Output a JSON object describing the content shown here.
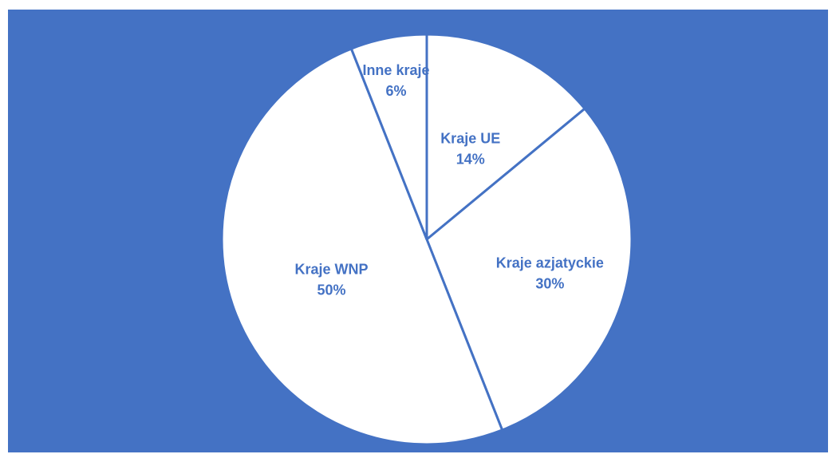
{
  "chart_data": {
    "type": "pie",
    "title": "",
    "slices": [
      {
        "label": "Kraje UE",
        "value": 14,
        "value_label": "14%"
      },
      {
        "label": "Kraje azjatyckie",
        "value": 30,
        "value_label": "30%"
      },
      {
        "label": "Kraje WNP",
        "value": 50,
        "value_label": "50%"
      },
      {
        "label": "Inne kraje",
        "value": 6,
        "value_label": "6%"
      }
    ],
    "legend": "none",
    "start_angle": "12 o'clock, clockwise"
  },
  "colors": {
    "background": "#4472c4",
    "slice_fill": "#ffffff",
    "slice_border": "#4472c4",
    "label_text": "#4472c4"
  }
}
